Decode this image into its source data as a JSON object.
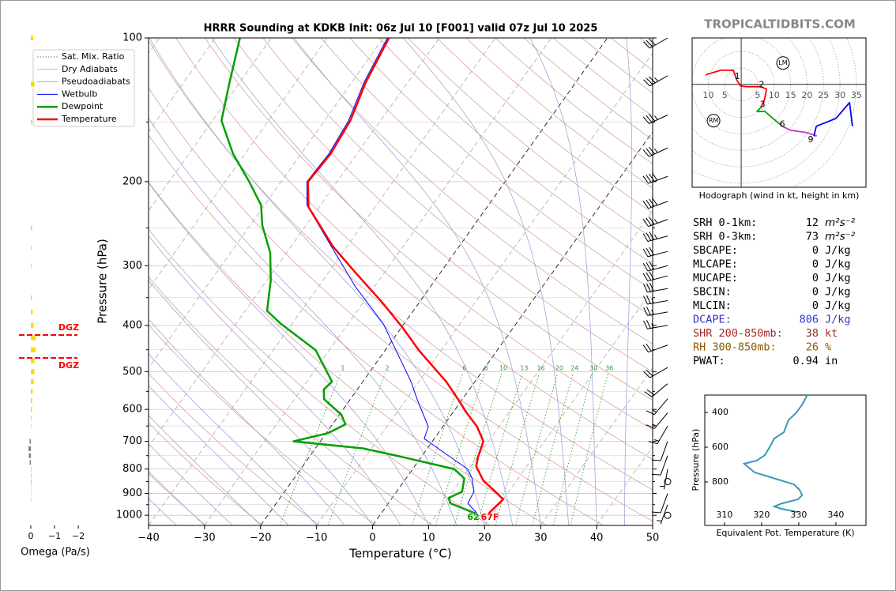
{
  "watermark": "TROPICALTIDBITS.COM",
  "chart_data": [
    {
      "type": "skew-t",
      "title": "HRRR Sounding at KDKB Init: 06z Jul 10 [F001] valid 07z Jul 10 2025",
      "xlabel": "Temperature (°C)",
      "ylabel": "Pressure (hPa)",
      "xlim": [
        -40,
        50
      ],
      "xticks": [
        {
          "value": -40,
          "label": "−40"
        },
        {
          "value": -30,
          "label": "−30"
        },
        {
          "value": -20,
          "label": "−20"
        },
        {
          "value": -10,
          "label": "−10"
        },
        0,
        10,
        20,
        30,
        40,
        50
      ],
      "ylim": [
        1050,
        100
      ],
      "yscale": "log",
      "yticks": [
        100,
        200,
        300,
        400,
        500,
        600,
        700,
        800,
        900,
        1000
      ],
      "yminor": [
        150,
        250,
        350,
        450,
        550,
        650,
        750,
        850,
        950
      ],
      "grid": true,
      "highlight_isotherms": [
        0,
        -20
      ],
      "background_lines": [
        {
          "name": "Sat. Mix. Ratio",
          "color": "#2e9e2e"
        },
        {
          "name": "Dry Adiabats",
          "color": "#dca0a0"
        },
        {
          "name": "Pseudoadiabats",
          "color": "#a4a4dc"
        }
      ],
      "mixing_ratio": [
        1,
        2,
        6,
        8,
        10,
        13,
        16,
        20,
        24,
        30,
        36
      ],
      "series": [
        {
          "name": "Wetbulb",
          "color": "#0000ff",
          "width": 1,
          "pressure": [
            990,
            944,
            892,
            837,
            800,
            754,
            691,
            652,
            571,
            525,
            397,
            332,
            274,
            224,
            200,
            175,
            149,
            124,
            100
          ],
          "values": [
            17.1,
            14.2,
            13.8,
            11.8,
            9.8,
            5.1,
            -1.8,
            -2.6,
            -8.1,
            -11.4,
            -23.7,
            -33.4,
            -42.7,
            -52.4,
            -55.4,
            -55.0,
            -55.7,
            -57.8,
            -59.3
          ]
        },
        {
          "name": "Dewpoint",
          "color": "#00a000",
          "width": 2.5,
          "pressure": [
            990,
            944,
            920,
            892,
            837,
            800,
            752,
            724,
            700,
            673,
            645,
            616,
            571,
            545,
            525,
            451,
            397,
            373,
            322,
            282,
            247,
            224,
            200,
            175,
            149,
            124,
            100
          ],
          "values": [
            16.8,
            11.1,
            10.1,
            11.7,
            10.4,
            7.4,
            -4.1,
            -11.5,
            -24.8,
            -19.7,
            -17.7,
            -19.6,
            -24.7,
            -26.0,
            -25.5,
            -32.4,
            -42.0,
            -46.1,
            -49.3,
            -52.9,
            -57.8,
            -60.6,
            -65.7,
            -72.1,
            -78.4,
            -81.8,
            -85.6
          ]
        },
        {
          "name": "Temperature",
          "color": "#ff0000",
          "width": 2.5,
          "pressure": [
            990,
            926,
            892,
            846,
            790,
            754,
            700,
            652,
            609,
            571,
            525,
            487,
            451,
            405,
            357,
            310,
            274,
            226,
            200,
            175,
            149,
            124,
            100
          ],
          "values": [
            19.2,
            20.0,
            17.6,
            14.1,
            11.0,
            10.1,
            9.1,
            6.1,
            2.4,
            -0.8,
            -5.1,
            -9.5,
            -14.0,
            -19.7,
            -26.8,
            -35.2,
            -42.4,
            -51.9,
            -55.2,
            -54.7,
            -55.4,
            -57.5,
            -59.0
          ]
        }
      ],
      "surface_labels": [
        62,
        {
          "value": 67,
          "label": "67F"
        }
      ],
      "wind_barbs": {
        "pressure": [
          100,
          120,
          145,
          170,
          195,
          220,
          240,
          260,
          280,
          300,
          315,
          335,
          355,
          375,
          400,
          440,
          490,
          530,
          570,
          610,
          650,
          700,
          750,
          800,
          850,
          900,
          950,
          1000
        ],
        "direction": [
          240,
          240,
          245,
          245,
          250,
          250,
          250,
          255,
          255,
          255,
          255,
          260,
          260,
          260,
          260,
          250,
          240,
          230,
          220,
          220,
          210,
          200,
          200,
          190,
          0,
          200,
          200,
          0
        ],
        "speed": [
          30,
          35,
          35,
          35,
          40,
          40,
          35,
          35,
          30,
          30,
          30,
          30,
          25,
          25,
          25,
          20,
          20,
          20,
          15,
          15,
          15,
          10,
          10,
          5,
          0,
          10,
          5,
          0
        ]
      }
    },
    {
      "type": "omega",
      "xlabel": "Omega (Pa/s)",
      "xlim": [
        0.3,
        -2.03
      ],
      "xticks": [
        0,
        {
          "value": -1,
          "label": "−1"
        },
        {
          "value": -2,
          "label": "−2"
        }
      ],
      "pressure": [
        100,
        125,
        150,
        250,
        275,
        300,
        350,
        375,
        400,
        425,
        450,
        475,
        500,
        525,
        550,
        575,
        600,
        625,
        650,
        700,
        725,
        750,
        775,
        800,
        825,
        850,
        875,
        900,
        925
      ],
      "values": [
        -0.1,
        -0.15,
        -0.05,
        -0.05,
        -0.03,
        -0.03,
        -0.05,
        -0.08,
        -0.12,
        -0.2,
        -0.2,
        -0.15,
        -0.15,
        -0.12,
        -0.08,
        -0.06,
        -0.05,
        -0.03,
        -0.02,
        0.05,
        0.1,
        0.08,
        0.05,
        -0.03,
        -0.03,
        -0.04,
        -0.02,
        -0.02,
        -0.02
      ],
      "color": "#ffd700",
      "positive_color": "#808080",
      "dgz": {
        "label": "DGZ",
        "pressures": [
          419,
          468
        ],
        "color": "#ff0000"
      }
    },
    {
      "type": "hodograph",
      "title": "Hodograph (wind in kt, height in km)",
      "xlim": [
        -14.9,
        37.9
      ],
      "ylim": [
        -31.2,
        14.1
      ],
      "rings": [
        5,
        10,
        15,
        20,
        25,
        30,
        35
      ],
      "segments": [
        {
          "color": "#ff0000",
          "u": [
            -10.8,
            -6.2,
            -2.4,
            -1.4,
            -0.2,
            1.7,
            5.8,
            7.7,
            7.0,
            6.0
          ],
          "v": [
            2.9,
            4.3,
            4.3,
            1.4,
            -0.5,
            -0.7,
            -0.7,
            -1.4,
            -4.8,
            -7.0
          ]
        },
        {
          "color": "#00a000",
          "u": [
            6.0,
            4.8,
            7.2,
            9.6,
            12.5
          ],
          "v": [
            -7.0,
            -8.2,
            -8.2,
            -10.3,
            -12.7
          ]
        },
        {
          "color": "#cc33cc",
          "u": [
            12.5,
            14.9,
            19.7,
            22.8,
            22.1
          ],
          "v": [
            -12.7,
            -13.9,
            -14.6,
            -15.6,
            -15.6
          ]
        },
        {
          "color": "#0000ff",
          "u": [
            22.1,
            22.8,
            28.8,
            32.9,
            33.8
          ],
          "v": [
            -15.6,
            -12.7,
            -10.3,
            -5.5,
            -12.7
          ]
        }
      ],
      "height_labels": {
        "values": [
          1,
          2,
          3,
          6,
          9
        ],
        "u": [
          -1.2,
          6.2,
          6.5,
          12.5,
          21.1
        ],
        "v": [
          2.4,
          -0.2,
          -6.2,
          -12.2,
          -16.8
        ]
      },
      "storm_motion": [
        {
          "label": "LM",
          "u": 12.7,
          "v": 6.5
        },
        {
          "label": "RM",
          "u": -8.4,
          "v": -11.0
        }
      ]
    },
    {
      "type": "line",
      "xlabel": "Equivalent Pot. Temperature (K)",
      "ylabel": "Pressure (hPa)",
      "xlim": [
        304.7,
        348.1
      ],
      "xticks": [
        310,
        320,
        330,
        340
      ],
      "ylim": [
        1050,
        300
      ],
      "yticks": [
        400,
        600,
        800
      ],
      "color": "#3a9ab5",
      "x": [
        332.3,
        330.9,
        329.4,
        327.2,
        326.0,
        323.4,
        322.3,
        320.9,
        318.7,
        315.3,
        318.1,
        321.7,
        328.7,
        330.2,
        330.9,
        329.8,
        325.5,
        323.4,
        325.5,
        329.8
      ],
      "pressure": [
        300,
        355,
        400,
        445,
        514,
        550,
        595,
        645,
        677,
        695,
        745,
        768,
        814,
        845,
        877,
        900,
        923,
        941,
        955,
        973
      ]
    }
  ],
  "stats": [
    {
      "label": "SRH 0-1km:",
      "value": 12,
      "unit": "m²s⁻²",
      "color": "#000000"
    },
    {
      "label": "SRH 0-3km:",
      "value": 73,
      "unit": "m²s⁻²",
      "color": "#000000"
    },
    {
      "label": "SBCAPE:",
      "value": 0,
      "unit": "J/kg",
      "color": "#000000"
    },
    {
      "label": "MLCAPE:",
      "value": 0,
      "unit": "J/kg",
      "color": "#000000"
    },
    {
      "label": "MUCAPE:",
      "value": 0,
      "unit": "J/kg",
      "color": "#000000"
    },
    {
      "label": "SBCIN:",
      "value": 0,
      "unit": "J/kg",
      "color": "#000000"
    },
    {
      "label": "MLCIN:",
      "value": 0,
      "unit": "J/kg",
      "color": "#000000"
    },
    {
      "label": "DCAPE:",
      "value": 806,
      "unit": "J/kg",
      "color": "#3333cc"
    },
    {
      "label": "SHR 200-850mb:",
      "value": 38,
      "unit": "kt",
      "color": "#a52a2a"
    },
    {
      "label": "RH 300-850mb:",
      "value": 26,
      "unit": "%",
      "color": "#8b5a00"
    },
    {
      "label": "PWAT:",
      "value": 0.94,
      "unit": "in",
      "color": "#000000"
    }
  ]
}
